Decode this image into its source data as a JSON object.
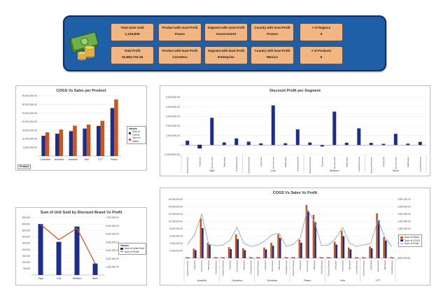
{
  "kpis": [
    {
      "label": "Total Units Sold",
      "value": "1,125,806"
    },
    {
      "label": "Product with most Profit",
      "value": "Paseo"
    },
    {
      "label": "Segment with most Profit",
      "value": "Government"
    },
    {
      "label": "Country with most Profit",
      "value": "France"
    },
    {
      "label": "# of Regions",
      "value": "5"
    },
    {
      "label": "Total Profit",
      "value": "16,893,702.26"
    },
    {
      "label": "Product with least Profit",
      "value": "Carretera"
    },
    {
      "label": "Segment with least Profit",
      "value": "Enterprise"
    },
    {
      "label": "Country with least Profit",
      "value": "Mexico"
    },
    {
      "label": "# of Products",
      "value": "6"
    }
  ],
  "colors": {
    "banner": "#1f5fa8",
    "kpi_box": "#f3b683",
    "navy": "#1c2e8c",
    "orange": "#d0531a",
    "gray_line": "#8ea2c8"
  },
  "icons": [
    "money-stack-icon"
  ],
  "chart_data": [
    {
      "type": "bar",
      "title": "COGS Vs Sales per Product",
      "categories": [
        "Carretera",
        "Montana",
        "Amarilla",
        "Velo",
        "VTT",
        "Paseo"
      ],
      "series": [
        {
          "name": "Sum of COGS",
          "values": [
            11800000,
            13000000,
            14500000,
            16000000,
            17500000,
            27900000
          ]
        },
        {
          "name": "Sum of Sales",
          "values": [
            13800000,
            15400000,
            17700000,
            18300000,
            20500000,
            32900000
          ]
        }
      ],
      "yticks": [
        "35,000,000.00",
        "30,000,000.00",
        "25,000,000.00",
        "20,000,000.00",
        "15,000,000.00",
        "10,000,000.00",
        "5,000,000.00",
        "-"
      ],
      "ylim": [
        0,
        35000000
      ],
      "legend_title": "Values",
      "field_button": "Product"
    },
    {
      "type": "bar",
      "title": "Discount Profit per Segment",
      "groups": [
        {
          "name": "High",
          "segments": [
            "Channel Partners",
            "Enterprise",
            "Government",
            "Midmarket",
            "Small Business"
          ],
          "values": [
            460000,
            -320000,
            2850000,
            280000,
            700000
          ]
        },
        {
          "name": "Low",
          "segments": [
            "Channel Partners",
            "Enterprise",
            "Government",
            "Midmarket",
            "Small Business"
          ],
          "values": [
            360000,
            180000,
            4150000,
            190000,
            1650000
          ]
        },
        {
          "name": "Medium",
          "segments": [
            "Channel Partners",
            "Enterprise",
            "Government",
            "Midmarket",
            "Small Business"
          ],
          "values": [
            270000,
            -150000,
            3500000,
            240000,
            1750000
          ]
        },
        {
          "name": "None",
          "segments": [
            "Channel Partners",
            "Enterprise",
            "Government",
            "Midmarket",
            "Small Business"
          ],
          "values": [
            230000,
            130000,
            1180000,
            150000,
            340000
          ]
        }
      ],
      "yticks": [
        "5,000,000.00",
        "4,000,000.00",
        "3,000,000.00",
        "2,000,000.00",
        "1,000,000.00",
        "-",
        "(1,000,000.00)"
      ],
      "ylim": [
        -1000000,
        5000000
      ]
    },
    {
      "type": "bar",
      "title": "Sum of Unit Sold by Discount Brand Vs Profit",
      "categories": [
        "High",
        "Low",
        "Medium",
        "None"
      ],
      "series": [
        {
          "name": "Sum of Units Sold",
          "values": [
            400000,
            260000,
            380000,
            90000
          ]
        },
        {
          "name": "Sum of Profit",
          "values": [
            6200000,
            4300000,
            5700000,
            1400000
          ]
        }
      ],
      "yticks_left": [
        "450,000",
        "400,000",
        "350,000",
        "300,000",
        "250,000",
        "200,000",
        "150,000",
        "100,000",
        "50,000",
        "-"
      ],
      "yticks_right": [
        "7,000,000.00",
        "6,000,000.00",
        "5,000,000.00",
        "4,000,000.00",
        "3,000,000.00",
        "2,000,000.00",
        "1,000,000.00",
        "-"
      ],
      "ylim_left": [
        0,
        450000
      ],
      "ylim_right": [
        0,
        7000000
      ],
      "legend_title": "Values"
    },
    {
      "type": "bar",
      "title": "COGS Vs Sales Vs Profit",
      "groups": [
        {
          "name": "Amarilla",
          "sales": [
            0.3,
            2.6,
            10.8,
            4.2,
            0.3
          ],
          "cogs": [
            0.2,
            2.2,
            8.2,
            3.6,
            0.2
          ],
          "profit": [
            0.45,
            1.1,
            2.5,
            0.45,
            0.35
          ]
        },
        {
          "name": "Carretera",
          "sales": [
            0.3,
            3.0,
            6.5,
            2.7,
            0.3
          ],
          "cogs": [
            0.2,
            2.5,
            5.2,
            2.2,
            0.2
          ],
          "profit": [
            0.4,
            0.7,
            1.6,
            0.5,
            0.3
          ]
        },
        {
          "name": "Montana",
          "sales": [
            0.3,
            2.9,
            4.2,
            6.5,
            0.3
          ],
          "cogs": [
            0.2,
            2.4,
            3.4,
            5.5,
            0.2
          ],
          "profit": [
            0.4,
            0.7,
            1.1,
            1.2,
            0.3
          ]
        },
        {
          "name": "Paseo",
          "sales": [
            0.3,
            5.0,
            14.5,
            11.8,
            0.3
          ],
          "cogs": [
            0.2,
            4.2,
            12.8,
            9.8,
            0.2
          ],
          "profit": [
            0.45,
            0.9,
            2.8,
            2.0,
            0.35
          ]
        },
        {
          "name": "Velo",
          "sales": [
            0.3,
            4.5,
            7.5,
            2.9,
            0.3
          ],
          "cogs": [
            0.2,
            3.7,
            6.0,
            2.4,
            0.2
          ],
          "profit": [
            0.4,
            0.85,
            1.6,
            0.5,
            0.3
          ]
        },
        {
          "name": "VTT",
          "sales": [
            0.3,
            3.2,
            12.2,
            5.7,
            0.3
          ],
          "cogs": [
            0.2,
            2.7,
            10.3,
            4.8,
            0.2
          ],
          "profit": [
            0.4,
            0.5,
            2.1,
            0.9,
            0.3
          ]
        }
      ],
      "segments": [
        "Channel Partners",
        "Enterprise",
        "Government",
        "Midmarket",
        "Small Business"
      ],
      "series_names": [
        "Sum of Sales",
        "Sum of COGS",
        "Sum of Profit"
      ],
      "unit_note": "sales/cogs in millions (left axis); profit in millions (right axis)",
      "yticks_left": [
        "16,000,000.00",
        "14,000,000.00",
        "12,000,000.00",
        "10,000,000.00",
        "8,000,000.00",
        "6,000,000.00",
        "4,000,000.00",
        "2,000,000.00",
        "-"
      ],
      "yticks_right": [
        "3,500,000.00",
        "3,000,000.00",
        "2,500,000.00",
        "2,000,000.00",
        "1,500,000.00",
        "1,000,000.00",
        "500,000.00",
        "-",
        "(500,000.00)"
      ],
      "ylim_left": [
        0,
        16
      ],
      "ylim_right": [
        -0.5,
        3.5
      ]
    }
  ]
}
